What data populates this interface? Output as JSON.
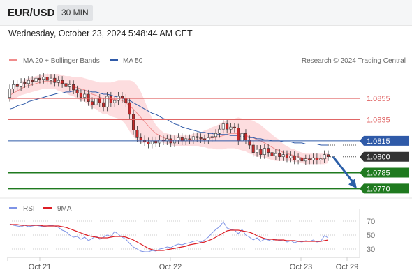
{
  "header": {
    "symbol": "EUR/USD",
    "timeframe": "30 MIN"
  },
  "datetime": "Wednesday, October 23, 2024 5:48:44 AM CET",
  "legend": {
    "ma20": {
      "label": "MA 20 + Bollinger Bands",
      "color": "#f08c8c"
    },
    "ma50": {
      "label": "MA 50",
      "color": "#2f5aa8"
    },
    "rsi": {
      "label": "RSI",
      "color": "#7e93e6"
    },
    "rsi_ma": {
      "label": "9MA",
      "color": "#dd1f26"
    }
  },
  "copyright": "Research © 2024 Trading Central",
  "colors": {
    "resistance": "#e06666",
    "pivot": "#2f5aa8",
    "support": "#1f7a1f",
    "last_price": "#333333",
    "candle_body": "#c62a2a",
    "arrow": "#2b5fa8",
    "band_fill": "#fdd9dc"
  },
  "chart_data": [
    {
      "type": "candlestick",
      "title": "EUR/USD",
      "timeframe": "30 MIN",
      "x_ticks": [
        "Oct 21",
        "Oct 22",
        "Oct 23",
        "Oct 29"
      ],
      "ylim": [
        1.0763,
        1.0882
      ],
      "levels": [
        {
          "label": "1.0855",
          "value": 1.0855,
          "kind": "resistance"
        },
        {
          "label": "1.0835",
          "value": 1.0835,
          "kind": "resistance"
        },
        {
          "label": "1.0815",
          "value": 1.0815,
          "kind": "pivot"
        },
        {
          "label": "1.0785",
          "value": 1.0785,
          "kind": "support"
        },
        {
          "label": "1.0770",
          "value": 1.077,
          "kind": "support"
        }
      ],
      "last_price": {
        "label": "1.0800",
        "value": 1.08
      },
      "close": [
        1.0864,
        1.0868,
        1.0866,
        1.087,
        1.0869,
        1.0872,
        1.0871,
        1.0874,
        1.0873,
        1.0875,
        1.0872,
        1.0874,
        1.087,
        1.0872,
        1.0869,
        1.0866,
        1.0868,
        1.0863,
        1.086,
        1.0856,
        1.0859,
        1.0852,
        1.0849,
        1.0855,
        1.0851,
        1.0847,
        1.0857,
        1.0851,
        1.0853,
        1.0857,
        1.0855,
        1.0851,
        1.084,
        1.0825,
        1.0818,
        1.0816,
        1.0814,
        1.0812,
        1.0815,
        1.0813,
        1.0816,
        1.0815,
        1.0817,
        1.0813,
        1.0816,
        1.0818,
        1.0815,
        1.0817,
        1.0816,
        1.0819,
        1.0818,
        1.0817,
        1.0816,
        1.0818,
        1.0819,
        1.0822,
        1.0826,
        1.0831,
        1.0826,
        1.0828,
        1.0827,
        1.0815,
        1.0822,
        1.0816,
        1.0811,
        1.0804,
        1.0807,
        1.0802,
        1.0808,
        1.0804,
        1.0801,
        1.0803,
        1.08,
        1.0802,
        1.0799,
        1.0801,
        1.0797,
        1.0799,
        1.0796,
        1.0798,
        1.0797,
        1.0799,
        1.0797,
        1.0798,
        1.0802,
        1.08
      ],
      "ma20": [
        1.0858,
        1.086,
        1.0862,
        1.0864,
        1.0866,
        1.0867,
        1.0868,
        1.0869,
        1.087,
        1.0871,
        1.0871,
        1.0871,
        1.0871,
        1.087,
        1.0869,
        1.0868,
        1.0867,
        1.0866,
        1.0865,
        1.0864,
        1.0863,
        1.0861,
        1.0859,
        1.0858,
        1.0856,
        1.0855,
        1.0855,
        1.0854,
        1.0854,
        1.0854,
        1.0853,
        1.0851,
        1.0848,
        1.0845,
        1.0841,
        1.0837,
        1.0833,
        1.0829,
        1.0825,
        1.0822,
        1.082,
        1.0818,
        1.0817,
        1.0816,
        1.0815,
        1.0815,
        1.0815,
        1.0815,
        1.0815,
        1.0816,
        1.0816,
        1.0816,
        1.0817,
        1.0817,
        1.0818,
        1.0818,
        1.0819,
        1.082,
        1.0821,
        1.0822,
        1.0822,
        1.0822,
        1.0821,
        1.082,
        1.0819,
        1.0818,
        1.0816,
        1.0815,
        1.0813,
        1.0811,
        1.0809,
        1.0807,
        1.0806,
        1.0804,
        1.0803,
        1.0802,
        1.0801,
        1.08,
        1.0799,
        1.0798,
        1.0798,
        1.0798,
        1.0798,
        1.0798,
        1.0798,
        1.0799
      ],
      "ma50": [
        1.0845,
        1.0846,
        1.0848,
        1.0849,
        1.085,
        1.0852,
        1.0853,
        1.0854,
        1.0855,
        1.0856,
        1.0857,
        1.0858,
        1.0859,
        1.086,
        1.086,
        1.0861,
        1.0861,
        1.0862,
        1.0862,
        1.0862,
        1.0862,
        1.0862,
        1.0861,
        1.0861,
        1.086,
        1.0859,
        1.0859,
        1.0858,
        1.0857,
        1.0856,
        1.0855,
        1.0854,
        1.0853,
        1.0851,
        1.0849,
        1.0847,
        1.0845,
        1.0843,
        1.0841,
        1.084,
        1.0838,
        1.0836,
        1.0835,
        1.0833,
        1.0831,
        1.083,
        1.0828,
        1.0827,
        1.0826,
        1.0825,
        1.0824,
        1.0823,
        1.0823,
        1.0822,
        1.0822,
        1.0821,
        1.0821,
        1.0821,
        1.0821,
        1.082,
        1.082,
        1.082,
        1.0819,
        1.0819,
        1.0818,
        1.0818,
        1.0817,
        1.0817,
        1.0816,
        1.0816,
        1.0815,
        1.0815,
        1.0815,
        1.0814,
        1.0814,
        1.0814,
        1.0813,
        1.0813,
        1.0813,
        1.0812,
        1.0812,
        1.0812,
        1.0812,
        1.0811,
        1.0811,
        1.0811
      ],
      "band_width": [
        0.0005,
        0.0006,
        0.0006,
        0.0006,
        0.0007,
        0.0007,
        0.0007,
        0.0007,
        0.0007,
        0.0007,
        0.0007,
        0.0007,
        0.0007,
        0.0008,
        0.0008,
        0.0008,
        0.0009,
        0.0009,
        0.001,
        0.0011,
        0.0011,
        0.0012,
        0.0013,
        0.0013,
        0.0014,
        0.0015,
        0.0015,
        0.0016,
        0.0017,
        0.0018,
        0.0019,
        0.0021,
        0.0024,
        0.0026,
        0.0026,
        0.0024,
        0.002,
        0.0015,
        0.0011,
        0.0008,
        0.0006,
        0.0005,
        0.0005,
        0.0005,
        0.0005,
        0.0005,
        0.0005,
        0.0005,
        0.0005,
        0.0006,
        0.0006,
        0.0007,
        0.0008,
        0.0009,
        0.001,
        0.0011,
        0.0012,
        0.0013,
        0.0013,
        0.0014,
        0.0014,
        0.0015,
        0.0015,
        0.0015,
        0.0016,
        0.0016,
        0.0016,
        0.0015,
        0.0014,
        0.0013,
        0.0012,
        0.0011,
        0.001,
        0.0008,
        0.0007,
        0.0006,
        0.0006,
        0.0005,
        0.0005,
        0.0005,
        0.0005,
        0.0005,
        0.0005,
        0.0005,
        0.0005,
        0.0005
      ],
      "forecast_arrow": {
        "from": 1.08,
        "to": 1.077
      }
    },
    {
      "type": "line",
      "title": "RSI",
      "y_ticks": [
        "70",
        "50",
        "30"
      ],
      "ylim": [
        20,
        80
      ],
      "rsi": [
        66,
        64,
        63,
        62,
        64,
        62,
        63,
        64,
        63,
        62,
        63,
        64,
        63,
        61,
        57,
        55,
        50,
        47,
        48,
        44,
        47,
        42,
        45,
        49,
        44,
        47,
        50,
        48,
        55,
        51,
        47,
        44,
        38,
        33,
        30,
        27,
        26,
        26,
        28,
        27,
        30,
        31,
        33,
        32,
        35,
        37,
        36,
        38,
        39,
        41,
        42,
        40,
        43,
        47,
        53,
        58,
        62,
        69,
        60,
        58,
        57,
        52,
        58,
        50,
        47,
        43,
        46,
        41,
        44,
        43,
        41,
        44,
        42,
        43,
        40,
        42,
        39,
        41,
        40,
        42,
        41,
        43,
        40,
        41,
        49,
        46
      ],
      "rsi_ma": [
        65,
        65,
        65,
        64,
        64,
        64,
        64,
        64,
        64,
        63,
        63,
        63,
        63,
        63,
        62,
        61,
        59,
        57,
        55,
        53,
        51,
        49,
        48,
        47,
        46,
        46,
        46,
        47,
        48,
        48,
        48,
        47,
        45,
        43,
        40,
        37,
        34,
        31,
        29,
        28,
        28,
        28,
        29,
        30,
        31,
        32,
        33,
        34,
        36,
        37,
        38,
        39,
        40,
        42,
        44,
        47,
        50,
        53,
        56,
        57,
        57,
        57,
        56,
        55,
        54,
        52,
        49,
        47,
        45,
        44,
        44,
        43,
        43,
        43,
        42,
        42,
        42,
        41,
        41,
        41,
        41,
        41,
        41,
        41,
        42,
        43
      ]
    }
  ]
}
